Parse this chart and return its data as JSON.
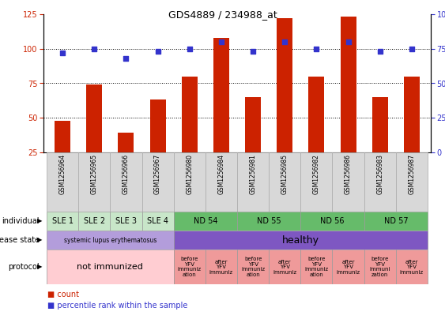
{
  "title": "GDS4889 / 234988_at",
  "samples": [
    "GSM1256964",
    "GSM1256965",
    "GSM1256966",
    "GSM1256967",
    "GSM1256980",
    "GSM1256984",
    "GSM1256981",
    "GSM1256985",
    "GSM1256982",
    "GSM1256986",
    "GSM1256983",
    "GSM1256987"
  ],
  "counts": [
    48,
    74,
    39,
    63,
    80,
    108,
    65,
    122,
    80,
    123,
    65,
    80
  ],
  "percentiles": [
    72,
    75,
    68,
    73,
    75,
    80,
    73,
    80,
    75,
    80,
    73,
    75
  ],
  "bar_color": "#cc2200",
  "dot_color": "#3333cc",
  "left_ylim": [
    25,
    125
  ],
  "left_yticks": [
    25,
    50,
    75,
    100,
    125
  ],
  "right_ylim": [
    0,
    100
  ],
  "right_yticks": [
    0,
    25,
    50,
    75,
    100
  ],
  "hline_values": [
    50,
    75,
    100
  ],
  "individual_groups": [
    {
      "label": "SLE 1",
      "start": 0,
      "end": 1,
      "color": "#c8e6c9"
    },
    {
      "label": "SLE 2",
      "start": 1,
      "end": 2,
      "color": "#c8e6c9"
    },
    {
      "label": "SLE 3",
      "start": 2,
      "end": 3,
      "color": "#c8e6c9"
    },
    {
      "label": "SLE 4",
      "start": 3,
      "end": 4,
      "color": "#c8e6c9"
    },
    {
      "label": "ND 54",
      "start": 4,
      "end": 6,
      "color": "#66bb6a"
    },
    {
      "label": "ND 55",
      "start": 6,
      "end": 8,
      "color": "#66bb6a"
    },
    {
      "label": "ND 56",
      "start": 8,
      "end": 10,
      "color": "#66bb6a"
    },
    {
      "label": "ND 57",
      "start": 10,
      "end": 12,
      "color": "#66bb6a"
    }
  ],
  "disease_groups": [
    {
      "label": "systemic lupus erythematosus",
      "start": 0,
      "end": 4,
      "color": "#b39ddb",
      "fontsize": 5.5
    },
    {
      "label": "healthy",
      "start": 4,
      "end": 12,
      "color": "#7e57c2",
      "fontsize": 9
    }
  ],
  "protocol_groups": [
    {
      "label": "not immunized",
      "start": 0,
      "end": 4,
      "color": "#ffcdd2",
      "fontsize": 8
    },
    {
      "label": "before\nYFV\nimmuniz\nation",
      "start": 4,
      "end": 5,
      "color": "#ef9a9a",
      "fontsize": 5
    },
    {
      "label": "after\nYFV\nimmuniz",
      "start": 5,
      "end": 6,
      "color": "#ef9a9a",
      "fontsize": 5
    },
    {
      "label": "before\nYFV\nimmuniz\nation",
      "start": 6,
      "end": 7,
      "color": "#ef9a9a",
      "fontsize": 5
    },
    {
      "label": "after\nYFV\nimmuniz",
      "start": 7,
      "end": 8,
      "color": "#ef9a9a",
      "fontsize": 5
    },
    {
      "label": "before\nYFV\nimmuniz\nation",
      "start": 8,
      "end": 9,
      "color": "#ef9a9a",
      "fontsize": 5
    },
    {
      "label": "after\nYFV\nimmuniz",
      "start": 9,
      "end": 10,
      "color": "#ef9a9a",
      "fontsize": 5
    },
    {
      "label": "before\nYFV\nimmuni\nzation",
      "start": 10,
      "end": 11,
      "color": "#ef9a9a",
      "fontsize": 5
    },
    {
      "label": "after\nYFV\nimmuniz",
      "start": 11,
      "end": 12,
      "color": "#ef9a9a",
      "fontsize": 5
    }
  ],
  "bg_color": "#ffffff",
  "tick_label_color_left": "#cc2200",
  "tick_label_color_right": "#3333cc",
  "bar_width": 0.5,
  "sample_bg": "#d8d8d8"
}
